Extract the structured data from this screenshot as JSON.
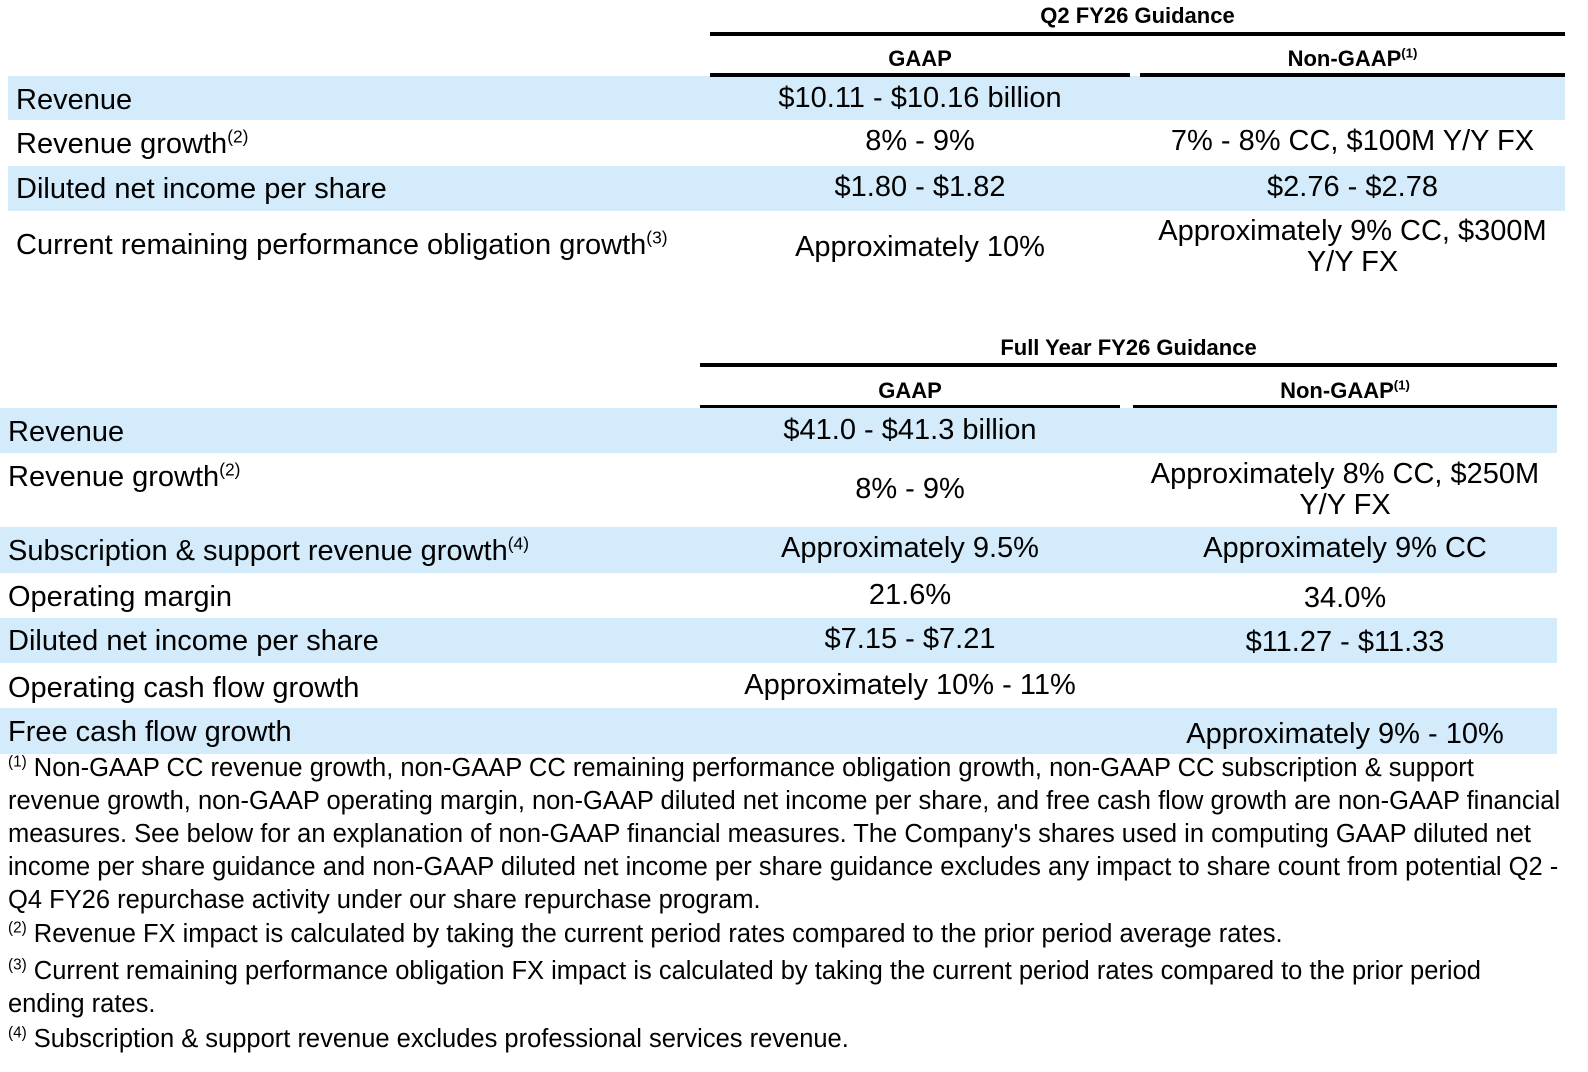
{
  "q2": {
    "title": "Q2 FY26 Guidance",
    "gaap": "GAAP",
    "nongaap": "Non-GAAP",
    "nongaap_sup": "(1)",
    "rows": [
      {
        "label": "Revenue",
        "sup": "",
        "gaap": "$10.11 - $10.16 billion",
        "nongaap": ""
      },
      {
        "label": "Revenue growth",
        "sup": "(2)",
        "gaap": "8% - 9%",
        "nongaap": "7% - 8% CC, $100M Y/Y FX"
      },
      {
        "label": "Diluted net income per share",
        "sup": "",
        "gaap": "$1.80 - $1.82",
        "nongaap": "$2.76 - $2.78"
      },
      {
        "label": "Current remaining performance obligation growth",
        "sup": "(3)",
        "gaap": "Approximately 10%",
        "nongaap": "Approximately 9% CC, $300M Y/Y FX"
      }
    ]
  },
  "fy": {
    "title": "Full Year FY26 Guidance",
    "gaap": "GAAP",
    "nongaap": "Non-GAAP",
    "nongaap_sup": "(1)",
    "rows": [
      {
        "label": "Revenue",
        "sup": "",
        "gaap": "$41.0 - $41.3 billion",
        "nongaap": ""
      },
      {
        "label": "Revenue growth",
        "sup": "(2)",
        "gaap": "8% - 9%",
        "nongaap": "Approximately 8% CC, $250M Y/Y FX"
      },
      {
        "label": "Subscription & support revenue growth",
        "sup": "(4)",
        "gaap": "Approximately 9.5%",
        "nongaap": "Approximately 9% CC"
      },
      {
        "label": "Operating margin",
        "sup": "",
        "gaap": "21.6%",
        "nongaap": "34.0%"
      },
      {
        "label": "Diluted net income per share",
        "sup": "",
        "gaap": "$7.15 - $7.21",
        "nongaap": "$11.27 - $11.33"
      },
      {
        "label": "Operating cash flow growth",
        "sup": "",
        "gaap": "Approximately 10% - 11%",
        "nongaap": ""
      },
      {
        "label": "Free cash flow growth",
        "sup": "",
        "gaap": "",
        "nongaap": "Approximately 9% - 10%"
      }
    ]
  },
  "footnotes": [
    {
      "sup": "(1)",
      "text": "Non-GAAP CC revenue growth, non-GAAP CC remaining performance obligation growth, non-GAAP CC subscription & support revenue growth, non-GAAP operating margin, non-GAAP diluted net income per share, and free cash flow growth are non-GAAP financial measures. See below for an explanation of non-GAAP financial measures. The Company's shares used in computing GAAP diluted net income per share guidance and non-GAAP diluted net income per share guidance excludes any impact to share count from potential Q2 - Q4 FY26 repurchase activity under our share repurchase program."
    },
    {
      "sup": "(2)",
      "text": "Revenue FX impact is calculated by taking the current period rates compared to the prior period average rates."
    },
    {
      "sup": "(3)",
      "text": "Current remaining performance obligation FX impact is calculated by taking the current period rates compared to the prior period ending rates."
    },
    {
      "sup": "(4)",
      "text": "Subscription & support revenue excludes professional services revenue."
    }
  ],
  "colors": {
    "band": "#d3ebfa"
  }
}
